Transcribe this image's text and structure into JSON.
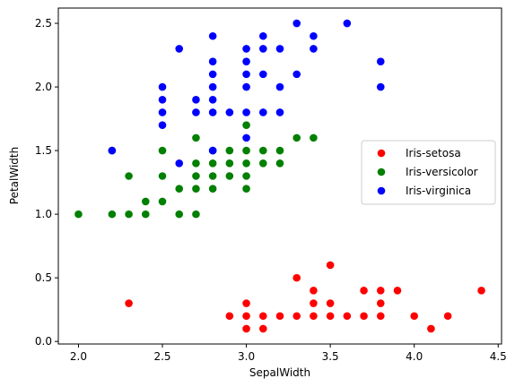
{
  "chart_data": {
    "type": "scatter",
    "title": "",
    "xlabel": "SepalWidth",
    "ylabel": "PetalWidth",
    "xlim": [
      1.88,
      4.52
    ],
    "ylim": [
      -0.02,
      2.62
    ],
    "xticks": [
      "2.0",
      "2.5",
      "3.0",
      "3.5",
      "4.0",
      "4.5"
    ],
    "yticks": [
      "0.0",
      "0.5",
      "1.0",
      "1.5",
      "2.0",
      "2.5"
    ],
    "legend_position": "center-right",
    "series": [
      {
        "name": "Iris-setosa",
        "color": "#ff0000",
        "points": [
          [
            2.3,
            0.3
          ],
          [
            2.9,
            0.2
          ],
          [
            3.0,
            0.1
          ],
          [
            3.0,
            0.2
          ],
          [
            3.0,
            0.3
          ],
          [
            3.1,
            0.1
          ],
          [
            3.1,
            0.2
          ],
          [
            3.2,
            0.2
          ],
          [
            3.3,
            0.2
          ],
          [
            3.3,
            0.5
          ],
          [
            3.4,
            0.2
          ],
          [
            3.4,
            0.3
          ],
          [
            3.4,
            0.4
          ],
          [
            3.5,
            0.2
          ],
          [
            3.5,
            0.3
          ],
          [
            3.5,
            0.6
          ],
          [
            3.6,
            0.2
          ],
          [
            3.7,
            0.2
          ],
          [
            3.7,
            0.4
          ],
          [
            3.8,
            0.2
          ],
          [
            3.8,
            0.3
          ],
          [
            3.8,
            0.4
          ],
          [
            3.9,
            0.4
          ],
          [
            4.0,
            0.2
          ],
          [
            4.1,
            0.1
          ],
          [
            4.2,
            0.2
          ],
          [
            4.4,
            0.4
          ]
        ]
      },
      {
        "name": "Iris-versicolor",
        "color": "#008000",
        "points": [
          [
            2.0,
            1.0
          ],
          [
            2.2,
            1.0
          ],
          [
            2.2,
            1.5
          ],
          [
            2.3,
            1.0
          ],
          [
            2.3,
            1.3
          ],
          [
            2.4,
            1.0
          ],
          [
            2.4,
            1.1
          ],
          [
            2.5,
            1.1
          ],
          [
            2.5,
            1.3
          ],
          [
            2.5,
            1.5
          ],
          [
            2.6,
            1.0
          ],
          [
            2.6,
            1.2
          ],
          [
            2.7,
            1.0
          ],
          [
            2.7,
            1.2
          ],
          [
            2.7,
            1.3
          ],
          [
            2.7,
            1.4
          ],
          [
            2.7,
            1.6
          ],
          [
            2.8,
            1.2
          ],
          [
            2.8,
            1.3
          ],
          [
            2.8,
            1.4
          ],
          [
            2.8,
            1.5
          ],
          [
            2.9,
            1.3
          ],
          [
            2.9,
            1.4
          ],
          [
            2.9,
            1.5
          ],
          [
            3.0,
            1.2
          ],
          [
            3.0,
            1.3
          ],
          [
            3.0,
            1.4
          ],
          [
            3.0,
            1.5
          ],
          [
            3.0,
            1.7
          ],
          [
            3.1,
            1.4
          ],
          [
            3.1,
            1.5
          ],
          [
            3.2,
            1.4
          ],
          [
            3.2,
            1.5
          ],
          [
            3.3,
            1.6
          ],
          [
            3.4,
            1.6
          ]
        ]
      },
      {
        "name": "Iris-virginica",
        "color": "#0000ff",
        "points": [
          [
            2.2,
            1.5
          ],
          [
            2.5,
            1.7
          ],
          [
            2.5,
            1.8
          ],
          [
            2.5,
            1.9
          ],
          [
            2.5,
            2.0
          ],
          [
            2.6,
            1.4
          ],
          [
            2.6,
            2.3
          ],
          [
            2.7,
            1.8
          ],
          [
            2.7,
            1.9
          ],
          [
            2.8,
            1.5
          ],
          [
            2.8,
            1.8
          ],
          [
            2.8,
            1.9
          ],
          [
            2.8,
            2.0
          ],
          [
            2.8,
            2.1
          ],
          [
            2.8,
            2.2
          ],
          [
            2.8,
            2.4
          ],
          [
            2.9,
            1.8
          ],
          [
            3.0,
            1.6
          ],
          [
            3.0,
            1.8
          ],
          [
            3.0,
            2.0
          ],
          [
            3.0,
            2.1
          ],
          [
            3.0,
            2.2
          ],
          [
            3.0,
            2.3
          ],
          [
            3.1,
            1.8
          ],
          [
            3.1,
            2.1
          ],
          [
            3.1,
            2.3
          ],
          [
            3.1,
            2.4
          ],
          [
            3.2,
            1.8
          ],
          [
            3.2,
            2.0
          ],
          [
            3.2,
            2.3
          ],
          [
            3.3,
            2.1
          ],
          [
            3.3,
            2.5
          ],
          [
            3.4,
            2.3
          ],
          [
            3.4,
            2.4
          ],
          [
            3.6,
            2.5
          ],
          [
            3.8,
            2.0
          ],
          [
            3.8,
            2.2
          ]
        ]
      }
    ]
  }
}
